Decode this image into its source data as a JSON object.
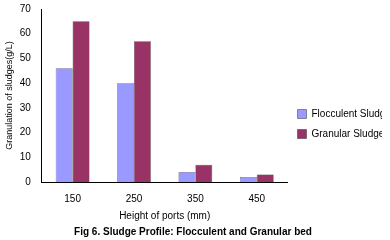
{
  "chart_data": {
    "type": "bar",
    "title": "Fig 6. Sludge Profile: Flocculent and Granular bed",
    "x_label": "Height of ports (mm)",
    "y_label": "Granulation of sludges(g/L)",
    "categories": [
      "150",
      "250",
      "350",
      "450"
    ],
    "series": [
      {
        "name": "Flocculent Sludge",
        "color": "#9999ff",
        "values": [
          46,
          40,
          4,
          2
        ]
      },
      {
        "name": "Granular Sludge",
        "color": "#993366",
        "values": [
          65,
          57,
          7,
          3
        ]
      }
    ],
    "ylim": [
      0,
      70
    ],
    "yticks": [
      0,
      10,
      20,
      30,
      40,
      50,
      60,
      70
    ],
    "grid": false,
    "legend": "right"
  }
}
